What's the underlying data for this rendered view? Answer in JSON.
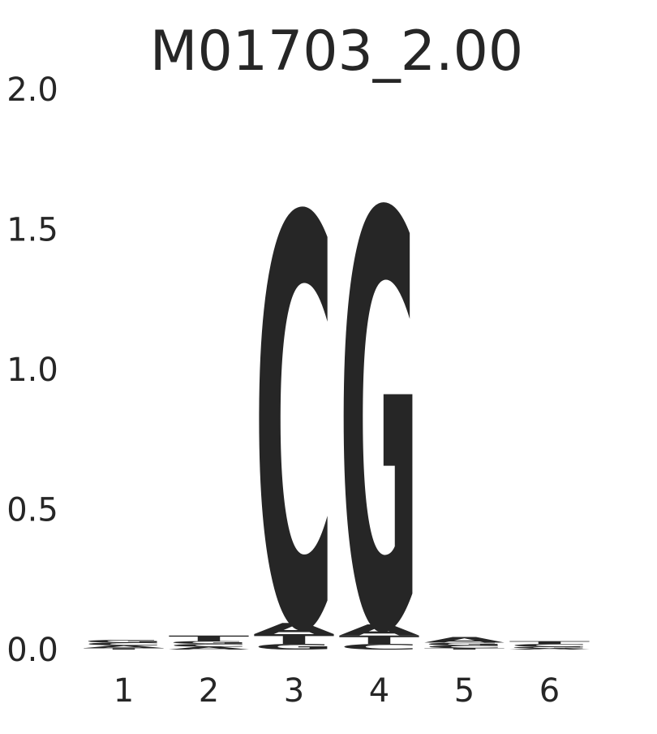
{
  "chart_data": {
    "type": "logo",
    "title": "M01703_2.00",
    "categories": [
      "1",
      "2",
      "3",
      "4",
      "5",
      "6"
    ],
    "series": [
      {
        "name": "A",
        "color": "#008000",
        "values": [
          0.01,
          0.01,
          0.04,
          0.04,
          0.02,
          0.005
        ]
      },
      {
        "name": "C",
        "color": "#0000ff",
        "values": [
          0.01,
          0.01,
          1.46,
          0.02,
          0.01,
          0.01
        ]
      },
      {
        "name": "G",
        "color": "#ffa500",
        "values": [
          0.01,
          0.01,
          0.02,
          1.48,
          0.01,
          0.005
        ]
      },
      {
        "name": "T",
        "color": "#ff0000",
        "values": [
          0.005,
          0.02,
          0.035,
          0.03,
          0.005,
          0.01
        ]
      }
    ],
    "ylim": [
      0,
      2
    ],
    "yticks": [
      {
        "value": 0,
        "label": "0.0"
      },
      {
        "value": 0.5,
        "label": "0.5"
      },
      {
        "value": 1,
        "label": "1.0"
      },
      {
        "value": 1.5,
        "label": "1.5"
      },
      {
        "value": 2,
        "label": "2.0"
      }
    ],
    "grid": false
  }
}
